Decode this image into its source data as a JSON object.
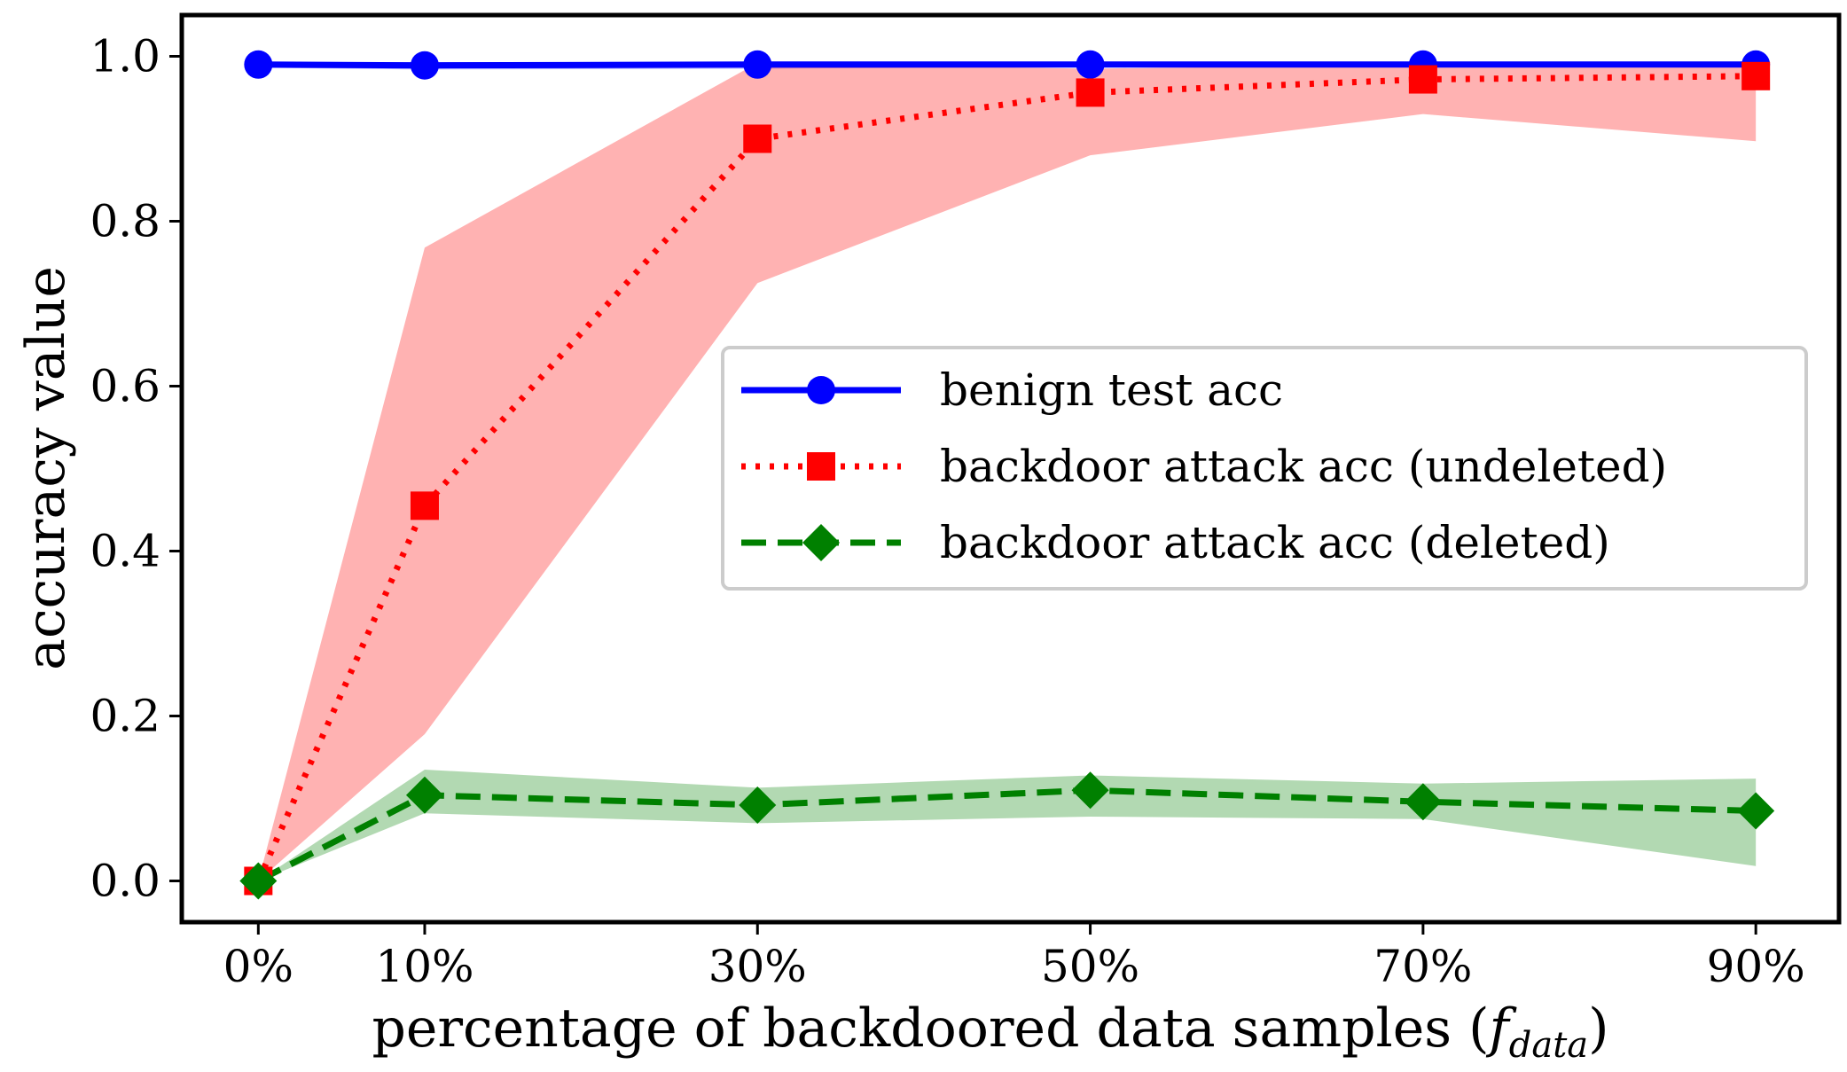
{
  "chart_data": {
    "type": "line",
    "xlabel": "percentage of backdoored data samples (",
    "xlabel_symbol": "f",
    "xlabel_subscript": "data",
    "xlabel_close": ")",
    "ylabel": "accuracy value",
    "x_positions": [
      0,
      10,
      30,
      50,
      70,
      90
    ],
    "x_tick_labels": [
      "0%",
      "10%",
      "30%",
      "50%",
      "70%",
      "90%"
    ],
    "y_ticks": [
      0.0,
      0.2,
      0.4,
      0.6,
      0.8,
      1.0
    ],
    "y_tick_labels": [
      "0.0",
      "0.2",
      "0.4",
      "0.6",
      "0.8",
      "1.0"
    ],
    "xlim": [
      -4.6,
      95
    ],
    "ylim": [
      -0.05,
      1.05
    ],
    "legend_position": "center-right",
    "grid": false,
    "series": [
      {
        "name": "benign test acc",
        "color": "#0000ff",
        "band_color": "#0000ff",
        "line_style": "solid",
        "marker": "circle",
        "values": [
          0.99,
          0.989,
          0.99,
          0.99,
          0.99,
          0.99
        ],
        "lower": [
          0.986,
          0.984,
          0.985,
          0.987,
          0.987,
          0.987
        ],
        "upper": [
          0.993,
          0.993,
          0.993,
          0.993,
          0.993,
          0.993
        ]
      },
      {
        "name": "backdoor attack acc (undeleted)",
        "color": "#ff0000",
        "band_color": "#ff0000",
        "line_style": "dotted",
        "marker": "square",
        "values": [
          0.0,
          0.455,
          0.9,
          0.956,
          0.972,
          0.976
        ],
        "lower": [
          0.0,
          0.178,
          0.725,
          0.88,
          0.93,
          0.897
        ],
        "upper": [
          0.0,
          0.768,
          0.992,
          0.985,
          0.99,
          0.99
        ]
      },
      {
        "name": "backdoor attack acc (deleted)",
        "color": "#008000",
        "band_color": "#008000",
        "line_style": "dashed",
        "marker": "diamond",
        "values": [
          0.0,
          0.104,
          0.092,
          0.11,
          0.096,
          0.085
        ],
        "lower": [
          0.0,
          0.082,
          0.07,
          0.078,
          0.075,
          0.018
        ],
        "upper": [
          0.0,
          0.135,
          0.113,
          0.128,
          0.118,
          0.124
        ]
      }
    ]
  }
}
